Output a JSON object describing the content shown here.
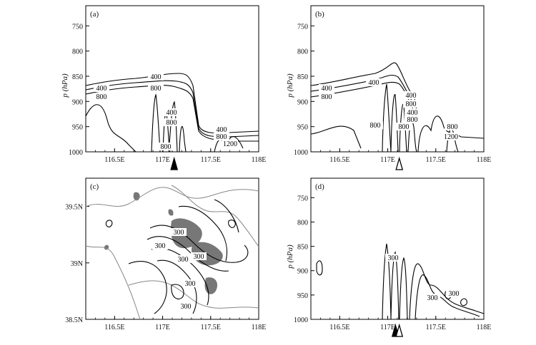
{
  "chart_data": [
    {
      "type": "line",
      "panel_label": "(a)",
      "ylabel": "p (hPa)",
      "x_ticks": [
        "116.5E",
        "117E",
        "117.5E",
        "118E"
      ],
      "y_ticks": [
        "750",
        "800",
        "850",
        "900",
        "950",
        "1000"
      ],
      "xlim": [
        116.2,
        118
      ],
      "ylim": [
        1000,
        710
      ],
      "contour_labels": [
        "400",
        "800",
        "400",
        "800",
        "400",
        "800",
        "400",
        "800",
        "1200",
        "800"
      ],
      "marker": {
        "lon": 117.12,
        "style": "filled"
      }
    },
    {
      "type": "line",
      "panel_label": "(b)",
      "ylabel": "p (hPa)",
      "x_ticks": [
        "116.5E",
        "117E",
        "117.5E",
        "118E"
      ],
      "y_ticks": [
        "750",
        "800",
        "850",
        "900",
        "950",
        "1000"
      ],
      "xlim": [
        116.2,
        118
      ],
      "ylim": [
        1000,
        710
      ],
      "contour_labels": [
        "400",
        "800",
        "400",
        "400",
        "800",
        "400",
        "800",
        "800",
        "800",
        "800",
        "1200"
      ],
      "marker": {
        "lon": 117.12,
        "style": "open"
      }
    },
    {
      "type": "heatmap",
      "panel_label": "(c)",
      "x_ticks": [
        "116.5E",
        "117E",
        "117.5E",
        "118E"
      ],
      "y_ticks": [
        "39.5N",
        "39N",
        "38.5N"
      ],
      "xlim": [
        116.2,
        118
      ],
      "ylim": [
        38.5,
        39.75
      ],
      "contour_labels": [
        "300",
        "300",
        "300",
        "300",
        "300",
        "300"
      ]
    },
    {
      "type": "line",
      "panel_label": "(d)",
      "ylabel": "p (hPa)",
      "x_ticks": [
        "116.5E",
        "117E",
        "117.5E",
        "118E"
      ],
      "y_ticks": [
        "750",
        "800",
        "850",
        "900",
        "950",
        "1000"
      ],
      "xlim": [
        116.2,
        118
      ],
      "ylim": [
        1000,
        710
      ],
      "contour_labels": [
        "300",
        "300",
        "300"
      ],
      "markers": [
        {
          "lon": 117.08,
          "style": "filled"
        },
        {
          "lon": 117.12,
          "style": "open"
        }
      ]
    }
  ]
}
